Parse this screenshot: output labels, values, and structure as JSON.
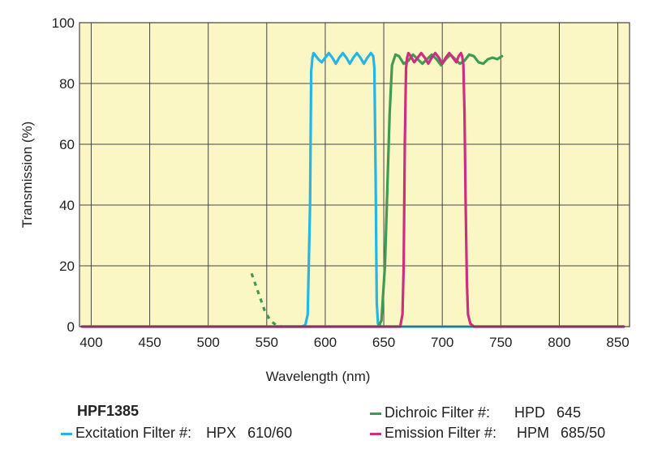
{
  "chart_data": {
    "type": "line",
    "xlabel": "Wavelength (nm)",
    "ylabel": "Transmission (%)",
    "xlim": [
      390,
      860
    ],
    "ylim": [
      0,
      100
    ],
    "x_ticks": [
      "400",
      "450",
      "500",
      "550",
      "600",
      "650",
      "700",
      "750",
      "800",
      "850"
    ],
    "y_ticks": [
      "0",
      "20",
      "40",
      "60",
      "80",
      "100"
    ],
    "grid": true,
    "background_color": "#fbf7c4",
    "grid_color": "#444444",
    "series": [
      {
        "key": "excitation",
        "color": "#26b5e6",
        "style": "solid",
        "points": [
          [
            392,
            0
          ],
          [
            580,
            0
          ],
          [
            583,
            0.5
          ],
          [
            585,
            4
          ],
          [
            587,
            40
          ],
          [
            588,
            84
          ],
          [
            589,
            88.5
          ],
          [
            590,
            90
          ],
          [
            591,
            89.5
          ],
          [
            594,
            88
          ],
          [
            597,
            87
          ],
          [
            600,
            88.5
          ],
          [
            603,
            90
          ],
          [
            606,
            88.5
          ],
          [
            609,
            86.5
          ],
          [
            612,
            88.5
          ],
          [
            615,
            90
          ],
          [
            618,
            88.5
          ],
          [
            621,
            86.5
          ],
          [
            624,
            88.5
          ],
          [
            627,
            90
          ],
          [
            630,
            88.5
          ],
          [
            633,
            86.5
          ],
          [
            636,
            88.5
          ],
          [
            639,
            90
          ],
          [
            641,
            89
          ],
          [
            642,
            85
          ],
          [
            643,
            50
          ],
          [
            644,
            8
          ],
          [
            645,
            1
          ],
          [
            648,
            0
          ],
          [
            855,
            0
          ]
        ]
      },
      {
        "key": "dichroic",
        "color": "#3f9a52",
        "style": "solid",
        "points": [
          [
            558,
            0
          ],
          [
            645,
            0
          ],
          [
            646,
            0.5
          ],
          [
            648,
            2
          ],
          [
            651,
            20
          ],
          [
            653,
            45
          ],
          [
            655,
            70
          ],
          [
            657,
            86
          ],
          [
            660,
            89.5
          ],
          [
            663,
            89
          ],
          [
            667,
            86.5
          ],
          [
            671,
            87.5
          ],
          [
            675,
            89.5
          ],
          [
            679,
            88
          ],
          [
            683,
            86.5
          ],
          [
            687,
            88
          ],
          [
            691,
            89.5
          ],
          [
            695,
            88
          ],
          [
            699,
            86
          ],
          [
            703,
            88
          ],
          [
            707,
            89.5
          ],
          [
            711,
            88
          ],
          [
            715,
            86.5
          ],
          [
            719,
            87.5
          ],
          [
            723,
            89.5
          ],
          [
            727,
            89
          ],
          [
            731,
            87
          ],
          [
            735,
            86.5
          ],
          [
            739,
            88
          ],
          [
            743,
            88.5
          ],
          [
            747,
            88
          ],
          [
            751,
            89
          ]
        ]
      },
      {
        "key": "dichroic_dashed",
        "color": "#3f9a52",
        "style": "dashed",
        "points": [
          [
            537,
            17.5
          ],
          [
            543,
            11
          ],
          [
            548,
            5.5
          ],
          [
            553,
            2
          ],
          [
            558,
            0.5
          ],
          [
            563,
            0
          ]
        ]
      },
      {
        "key": "emission",
        "color": "#cc2f80",
        "style": "solid",
        "points": [
          [
            392,
            0
          ],
          [
            664,
            0
          ],
          [
            666,
            4
          ],
          [
            667,
            20
          ],
          [
            668,
            60
          ],
          [
            669,
            85
          ],
          [
            670,
            88.5
          ],
          [
            671,
            90
          ],
          [
            673,
            89
          ],
          [
            676,
            87
          ],
          [
            679,
            88.5
          ],
          [
            682,
            90
          ],
          [
            685,
            88.5
          ],
          [
            688,
            86.5
          ],
          [
            691,
            88.5
          ],
          [
            694,
            90
          ],
          [
            697,
            88.5
          ],
          [
            700,
            86.5
          ],
          [
            703,
            88.5
          ],
          [
            706,
            90
          ],
          [
            709,
            88.5
          ],
          [
            712,
            87
          ],
          [
            714,
            89
          ],
          [
            716,
            90
          ],
          [
            717,
            89
          ],
          [
            718,
            86
          ],
          [
            719,
            70
          ],
          [
            720,
            40
          ],
          [
            721,
            15
          ],
          [
            722,
            4
          ],
          [
            724,
            1
          ],
          [
            727,
            0
          ],
          [
            855,
            0
          ]
        ]
      }
    ]
  },
  "legend": {
    "product": "HPF1385",
    "items": [
      {
        "key": "excitation",
        "name": "Excitation Filter #:",
        "code": "HPX",
        "spec": "610/60",
        "color": "#26b5e6"
      },
      {
        "key": "dichroic",
        "name": "Dichroic Filter #:",
        "code": "HPD",
        "spec": "645",
        "color": "#3f9a52"
      },
      {
        "key": "emission",
        "name": "Emission Filter #:",
        "code": "HPM",
        "spec": "685/50",
        "color": "#cc2f80"
      }
    ]
  }
}
